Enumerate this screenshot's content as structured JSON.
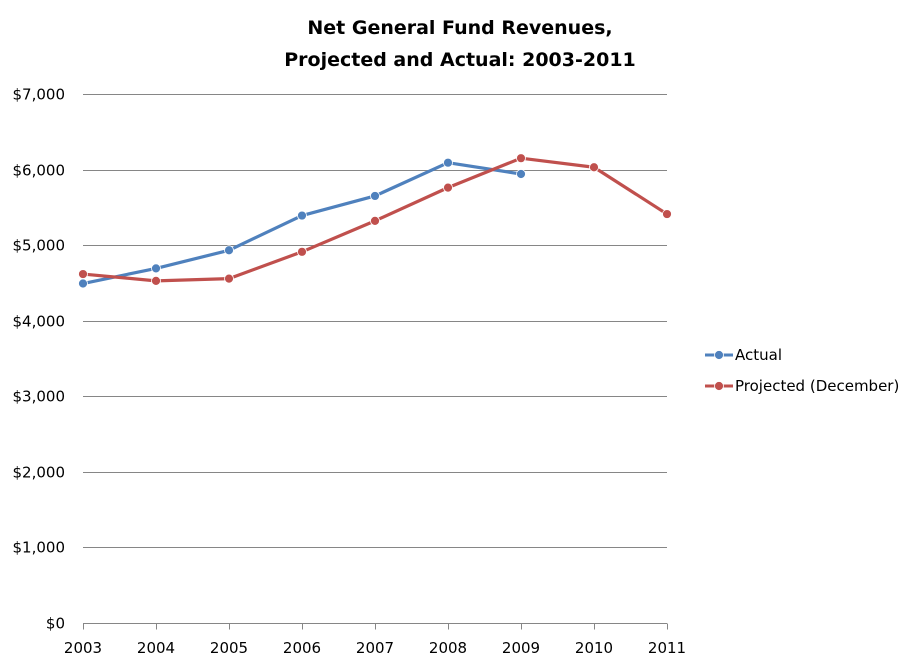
{
  "chart_data": {
    "type": "line",
    "title": [
      "Net General Fund Revenues,",
      "Projected and Actual: 2003-2011"
    ],
    "xlabel": "",
    "ylabel": "",
    "categories": [
      "2003",
      "2004",
      "2005",
      "2006",
      "2007",
      "2008",
      "2009",
      "2010",
      "2011"
    ],
    "ylim": [
      0,
      7000
    ],
    "y_ticks": [
      0,
      1000,
      2000,
      3000,
      4000,
      5000,
      6000,
      7000
    ],
    "y_tick_labels": [
      "$0",
      "$1,000",
      "$2,000",
      "$3,000",
      "$4,000",
      "$5,000",
      "$6,000",
      "$7,000"
    ],
    "grid": true,
    "legend_position": "right",
    "series": [
      {
        "name": "Actual",
        "color": "#4F81BD",
        "marker": "circle",
        "values": [
          4490,
          4690,
          4930,
          5390,
          5650,
          6090,
          5940,
          null,
          null
        ]
      },
      {
        "name": "Projected (December)",
        "color": "#C0504D",
        "marker": "circle",
        "values": [
          4615,
          4525,
          4555,
          4910,
          5320,
          5760,
          6150,
          6030,
          5410
        ]
      }
    ],
    "colors": {
      "gridline": "#868686",
      "axis": "#868686"
    }
  }
}
